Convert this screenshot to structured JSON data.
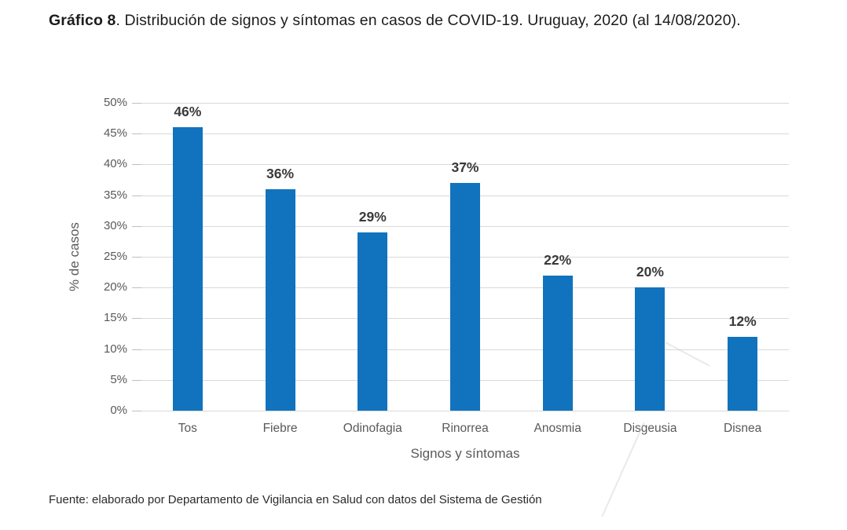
{
  "title": {
    "bold_prefix": "Gráfico 8",
    "text_after_bold": ". Distribución de signos y síntomas en casos de COVID-19. Uruguay, 2020 (al 14/08/2020)."
  },
  "chart_data": {
    "type": "bar",
    "categories": [
      "Tos",
      "Fiebre",
      "Odinofagia",
      "Rinorrea",
      "Anosmia",
      "Disgeusia",
      "Disnea"
    ],
    "values": [
      46,
      36,
      29,
      37,
      22,
      20,
      12
    ],
    "data_labels": [
      "46%",
      "36%",
      "29%",
      "37%",
      "22%",
      "20%",
      "12%"
    ],
    "xlabel": "Signos y síntomas",
    "ylabel": "% de casos",
    "ylim": [
      0,
      50
    ],
    "ytick_step": 5,
    "ytick_labels": [
      "0%",
      "5%",
      "10%",
      "15%",
      "20%",
      "25%",
      "30%",
      "35%",
      "40%",
      "45%",
      "50%"
    ],
    "grid": true,
    "legend": false,
    "bar_color": "#1173be"
  },
  "footer": "Fuente: elaborado por Departamento de Vigilancia en Salud con datos del Sistema de Gestión"
}
